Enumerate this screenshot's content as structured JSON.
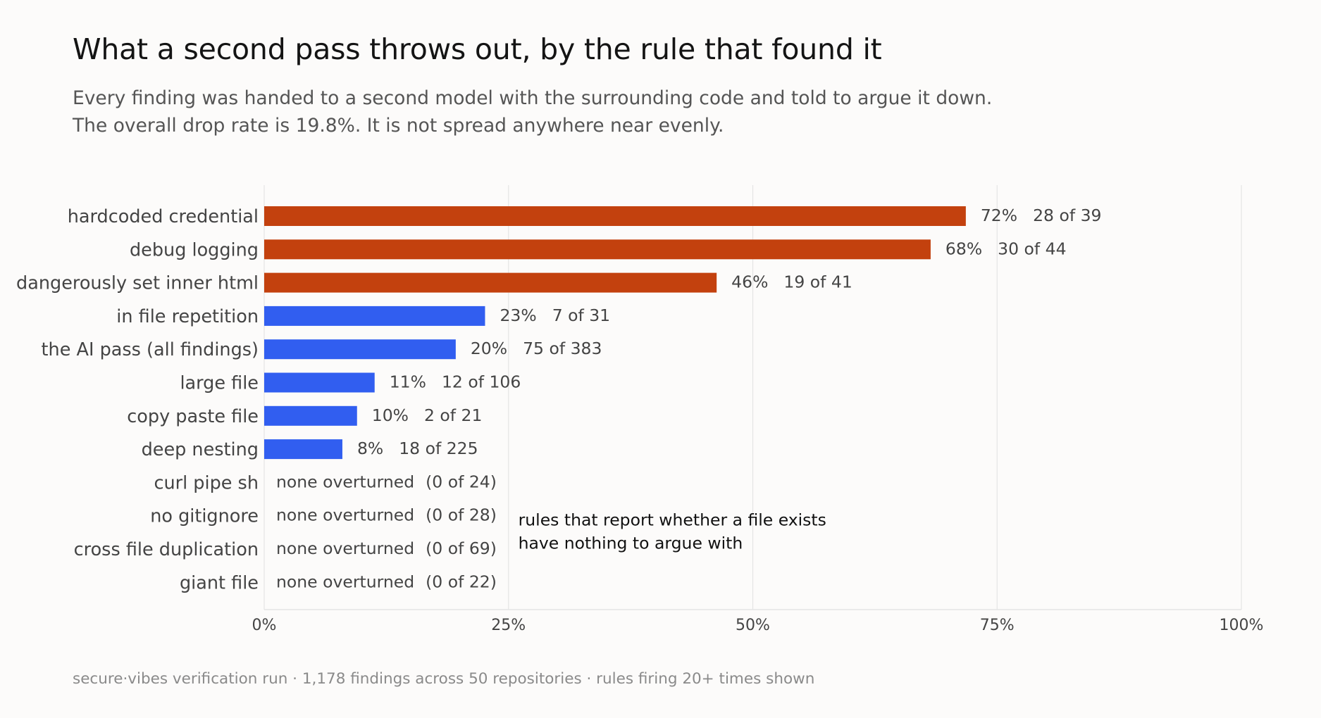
{
  "chart_data": {
    "type": "bar",
    "orientation": "horizontal",
    "title": "What a second pass throws out, by the rule that found it",
    "subtitle": [
      "Every finding was handed to a second model with the surrounding code and told to argue it down.",
      "The overall drop rate is 19.8%. It is not spread anywhere near evenly."
    ],
    "xlim": [
      0,
      100
    ],
    "x_ticks": [
      0,
      25,
      50,
      75,
      100
    ],
    "x_tick_labels": [
      "0%",
      "25%",
      "50%",
      "75%",
      "100%"
    ],
    "grid": "vertical",
    "categories": [
      "hardcoded credential",
      "debug logging",
      "dangerously set inner html",
      "in file repetition",
      "the AI pass (all findings)",
      "large file",
      "copy paste file",
      "deep nesting",
      "curl pipe sh",
      "no gitignore",
      "cross file duplication",
      "giant file"
    ],
    "values": [
      71.8,
      68.2,
      46.3,
      22.6,
      19.6,
      11.3,
      9.5,
      8.0,
      0,
      0,
      0,
      0
    ],
    "value_labels": [
      "72%",
      "68%",
      "46%",
      "23%",
      "20%",
      "11%",
      "10%",
      "8%",
      "none overturned",
      "none overturned",
      "none overturned",
      "none overturned"
    ],
    "count_labels": [
      "28 of 39",
      "30 of 44",
      "19 of 41",
      "7 of 31",
      "75 of 383",
      "12 of 106",
      "2 of 21",
      "18 of 225",
      "(0 of 24)",
      "(0 of 28)",
      "(0 of 69)",
      "(0 of 22)"
    ],
    "bar_colors": [
      "#c3410e",
      "#c3410e",
      "#c3410e",
      "#315ef0",
      "#315ef0",
      "#315ef0",
      "#315ef0",
      "#315ef0",
      "#315ef0",
      "#315ef0",
      "#315ef0",
      "#315ef0"
    ],
    "colors": {
      "high": "#c3410e",
      "normal": "#315ef0",
      "grid": "#e4e4e4",
      "label": "#444444",
      "annotation": "#111111"
    },
    "annotation": {
      "lines": [
        "rules that report whether a file exists",
        "have nothing to argue with"
      ],
      "x": 26,
      "rows": [
        "no gitignore",
        "cross file duplication"
      ]
    },
    "footer": "secure·vibes verification run · 1,178 findings across 50 repositories · rules firing 20+ times shown"
  }
}
